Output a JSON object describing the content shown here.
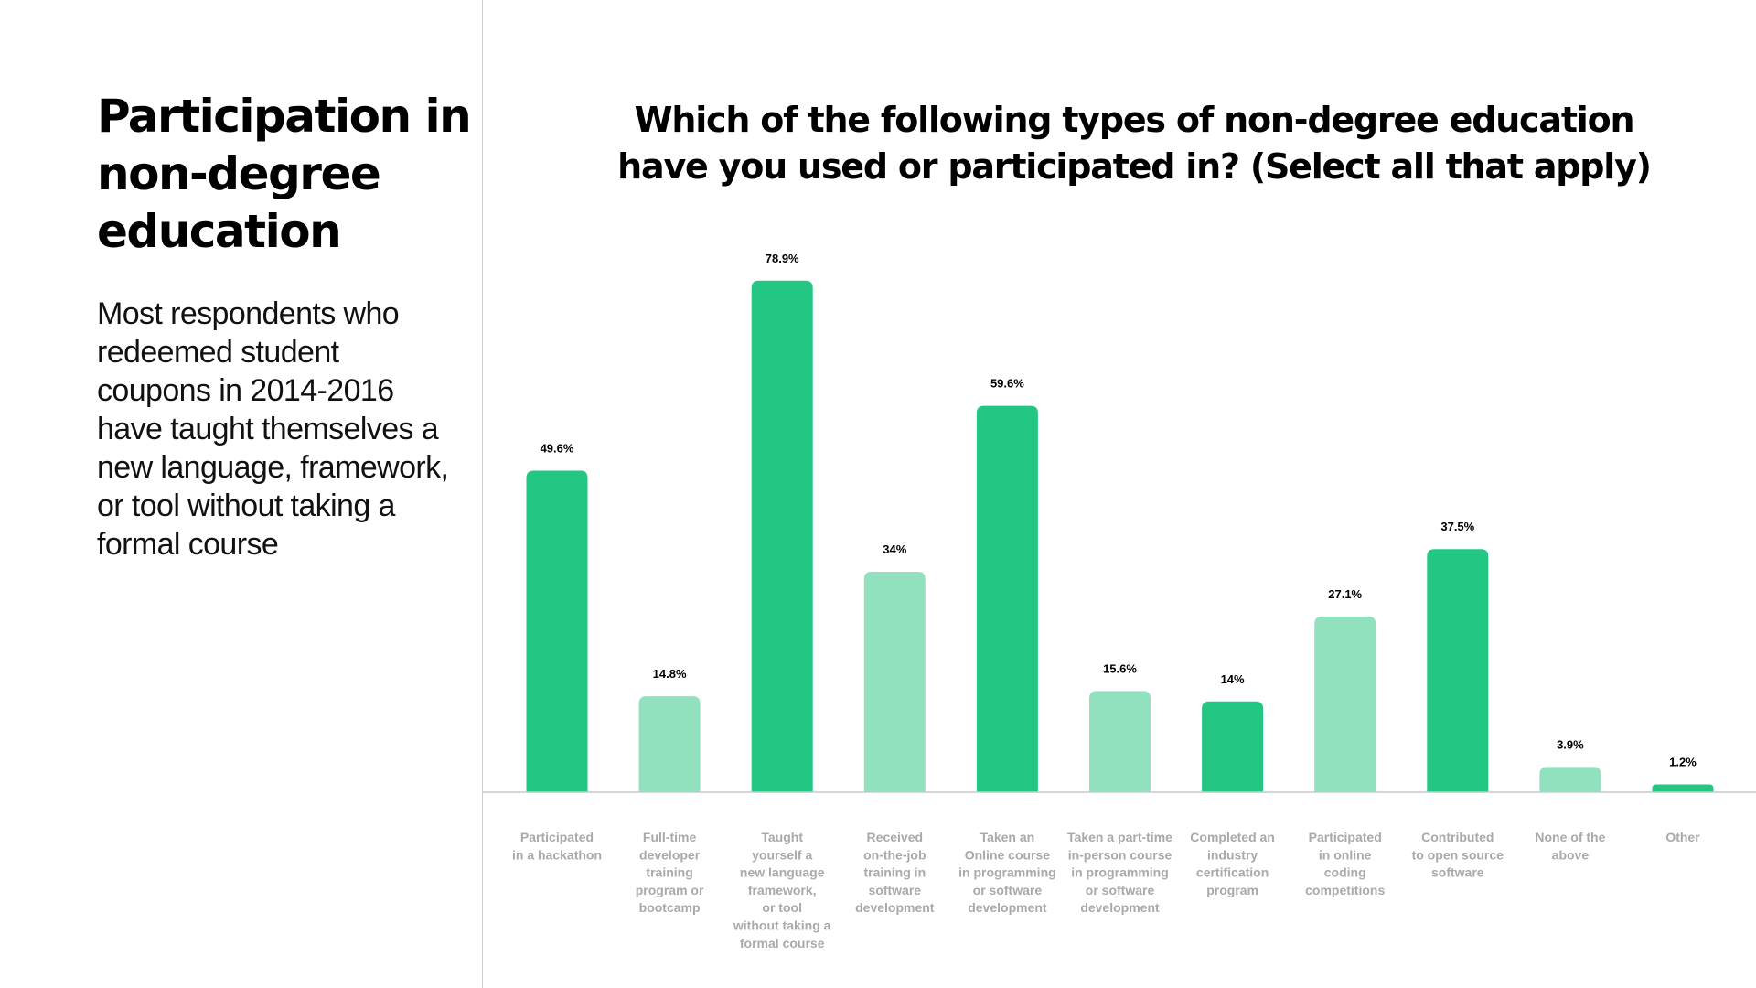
{
  "page": {
    "title": "Participation in non-degree education",
    "description": "Most respondents who redeemed student coupons in 2014-2016 have taught themselves a new language, framework, or tool without taking a formal course"
  },
  "colors": {
    "bar_dark": "#24c683",
    "bar_light": "#91e1bf",
    "baseline": "#c9c9c9",
    "category_text": "#a9a9a9"
  },
  "chart_data": {
    "type": "bar",
    "title": "Which of the following types of non-degree education have you used or participated in? (Select all that apply)",
    "value_suffix": "%",
    "ylim": [
      0,
      80
    ],
    "grid": false,
    "categories": [
      "Participated in a hackathon",
      "Full-time developer training program or bootcamp",
      "Taught yourself a new language framework, or tool without taking a formal course",
      "Received on-the-job training in software development",
      "Taken an Online course in programming or software development",
      "Taken a part-time in-person course in programming or software development",
      "Completed an industry certification program",
      "Participated in online coding competitions",
      "Contributed to open source software",
      "None of the above",
      "Other"
    ],
    "category_lines": [
      [
        "Participated",
        "in a hackathon"
      ],
      [
        "Full-time",
        "developer",
        "training",
        "program or",
        "bootcamp"
      ],
      [
        "Taught",
        "yourself a",
        "new language",
        "framework,",
        "or tool",
        "without taking a",
        "formal course"
      ],
      [
        "Received",
        "on-the-job",
        "training in",
        "software",
        "development"
      ],
      [
        "Taken an",
        "Online course",
        "in programming",
        "or software",
        "development"
      ],
      [
        "Taken a part-time",
        "in-person course",
        "in programming",
        "or software",
        "development"
      ],
      [
        "Completed an",
        "industry",
        "certification",
        "program"
      ],
      [
        "Participated",
        "in online",
        "coding",
        "competitions"
      ],
      [
        "Contributed",
        "to open source",
        "software"
      ],
      [
        "None of the",
        "above"
      ],
      [
        "Other"
      ]
    ],
    "values": [
      49.6,
      14.8,
      78.9,
      34,
      59.6,
      15.6,
      14,
      27.1,
      37.5,
      3.9,
      1.2
    ],
    "bar_shades": [
      "dark",
      "light",
      "dark",
      "light",
      "dark",
      "light",
      "dark",
      "light",
      "dark",
      "light",
      "dark"
    ]
  }
}
